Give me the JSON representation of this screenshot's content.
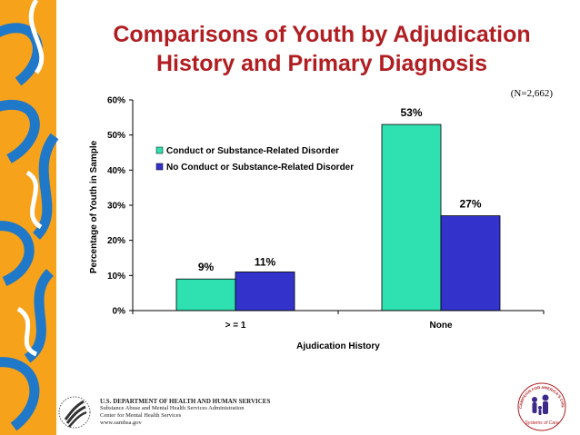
{
  "title_lines": [
    "Comparisons of Youth by Adjudication",
    "History and Primary Diagnosis"
  ],
  "sample_note": "(N=2,662)",
  "colors": {
    "title": "#b01e22",
    "series1": "#2fe0b0",
    "series2": "#3333cc",
    "sidebar_blue": "#1f78c8",
    "sidebar_orange": "#f7a21b"
  },
  "chart_data": {
    "type": "bar",
    "title": "Comparisons of Youth by Adjudication History and Primary Diagnosis",
    "xlabel": "Ajudication History",
    "ylabel": "Percentage of Youth in Sample",
    "ylim": [
      0,
      60
    ],
    "yticks": [
      0,
      10,
      20,
      30,
      40,
      50,
      60
    ],
    "ytick_labels": [
      "0%",
      "10%",
      "20%",
      "30%",
      "40%",
      "50%",
      "60%"
    ],
    "categories": [
      "> = 1",
      "None"
    ],
    "series": [
      {
        "name": "Conduct or Substance-Related Disorder",
        "values": [
          9,
          53
        ],
        "labels": [
          "9%",
          "53%"
        ]
      },
      {
        "name": "No Conduct or Substance-Related Disorder",
        "values": [
          11,
          27
        ],
        "labels": [
          "11%",
          "27%"
        ]
      }
    ],
    "grid": false,
    "legend_position": "upper-center"
  },
  "footer": {
    "department": "U.S. DEPARTMENT OF HEALTH AND HUMAN SERVICES",
    "agency": "Substance Abuse and Mental Health Services Administration",
    "center": "Center for Mental Health Services",
    "website": "www.samhsa.gov"
  },
  "seal": {
    "ring_text": "CAMPAIGN FOR AMERICA'S CHILDREN'S MENTAL HEALTH",
    "caption": "Systems of Care"
  }
}
